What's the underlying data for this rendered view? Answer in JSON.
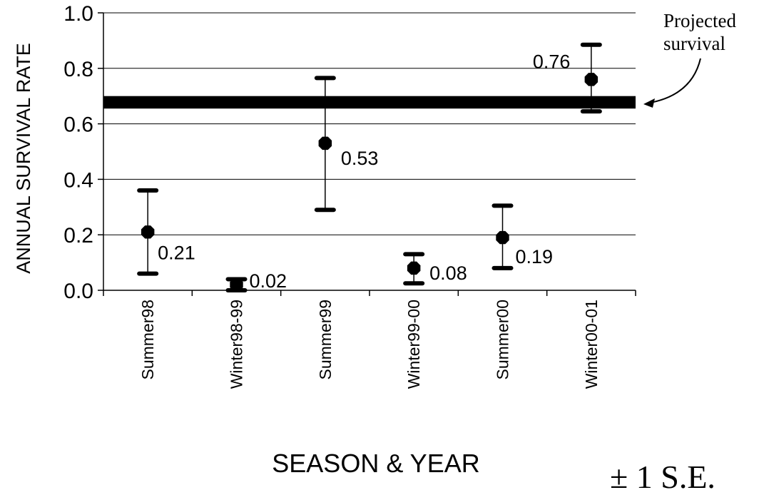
{
  "chart_data": {
    "type": "scatter",
    "title": "",
    "xlabel": "SEASON & YEAR",
    "ylabel": "ANNUAL SURVIVAL RATE",
    "ylim": [
      0,
      1.0
    ],
    "yticks": [
      "0.0",
      "0.2",
      "0.4",
      "0.6",
      "0.8",
      "1.0"
    ],
    "ytick_values": [
      0,
      0.2,
      0.4,
      0.6,
      0.8,
      1.0
    ],
    "grid": true,
    "categories": [
      "Summer98",
      "Winter98-99",
      "Summer99",
      "Winter99-00",
      "Summer00",
      "Winter00-01"
    ],
    "series": [
      {
        "values": [
          0.21,
          0.02,
          0.53,
          0.08,
          0.19,
          0.76
        ],
        "labels": [
          "0.21",
          "0.02",
          "0.53",
          "0.08",
          "0.19",
          "0.76"
        ],
        "err_low": [
          0.06,
          0.0,
          0.29,
          0.025,
          0.08,
          0.645
        ],
        "err_high": [
          0.36,
          0.04,
          0.765,
          0.13,
          0.305,
          0.885
        ]
      }
    ],
    "reference_band": {
      "low": 0.655,
      "high": 0.7,
      "label": "Projected survival",
      "label_lines": [
        "Projected",
        "survival"
      ]
    },
    "error_note": "± 1 S.E."
  }
}
